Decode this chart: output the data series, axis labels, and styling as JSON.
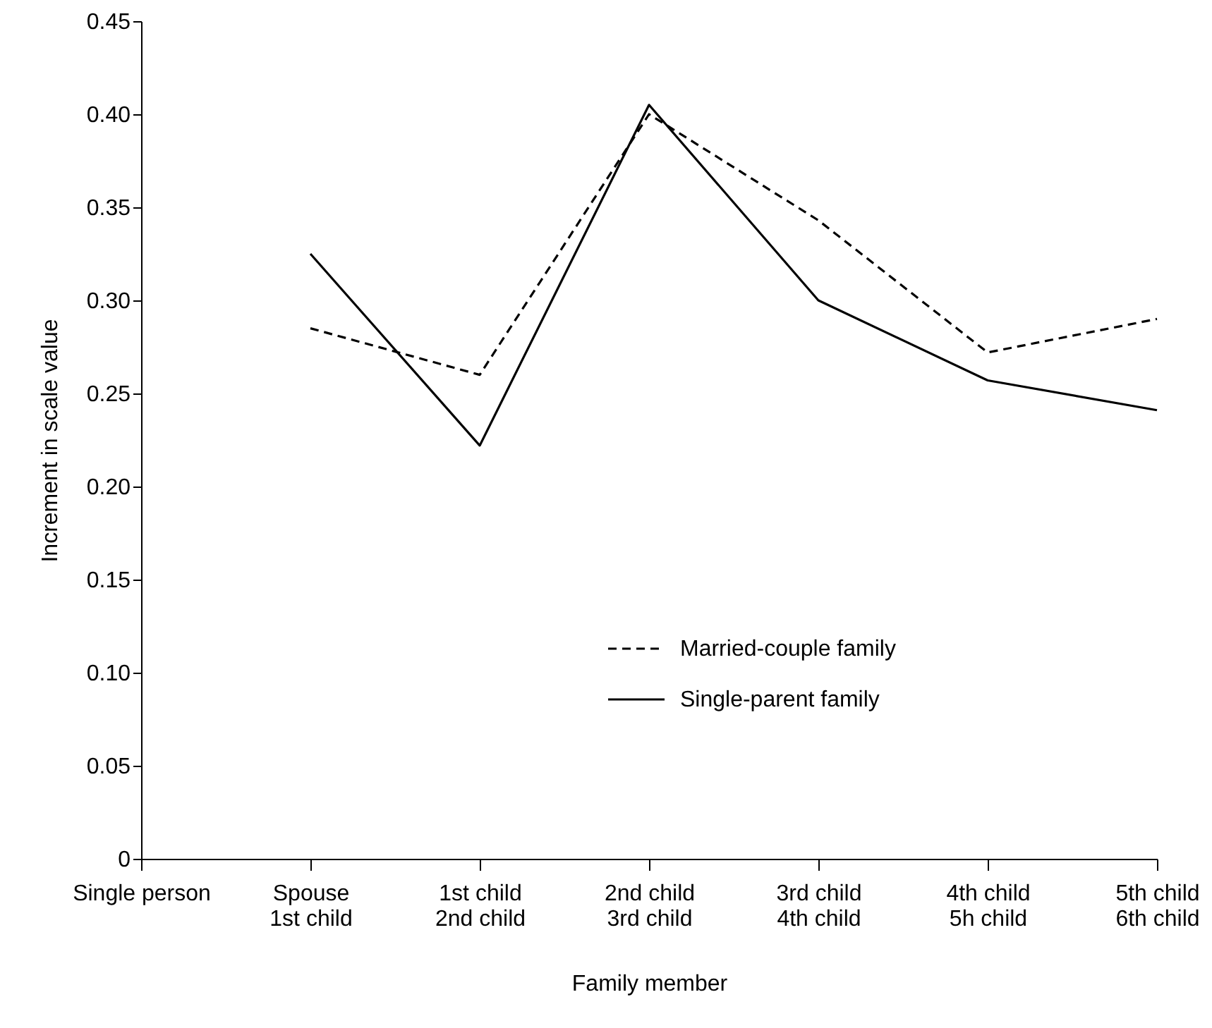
{
  "chart_data": {
    "type": "line",
    "xlabel": "Family member",
    "ylabel": "Increment in scale value",
    "categories": [
      "Single person",
      "Spouse\n1st child",
      "1st child\n2nd child",
      "2nd child\n3rd child",
      "3rd child\n4th child",
      "4th child\n5h child",
      "5th child\n6th child"
    ],
    "series": [
      {
        "name": "Married-couple family",
        "color": "#000000",
        "line_style": "dashed",
        "values": [
          null,
          0.285,
          0.26,
          0.4,
          0.343,
          0.272,
          0.29
        ]
      },
      {
        "name": "Single-parent family",
        "color": "#000000",
        "line_style": "solid",
        "values": [
          null,
          0.325,
          0.222,
          0.405,
          0.3,
          0.257,
          0.241
        ]
      }
    ],
    "ylim": [
      0,
      0.45
    ],
    "yticks": [
      {
        "value": 0,
        "label": "0"
      },
      {
        "value": 0.05,
        "label": "0.05"
      },
      {
        "value": 0.1,
        "label": "0.10"
      },
      {
        "value": 0.15,
        "label": "0.15"
      },
      {
        "value": 0.2,
        "label": "0.20"
      },
      {
        "value": 0.25,
        "label": "0.25"
      },
      {
        "value": 0.3,
        "label": "0.30"
      },
      {
        "value": 0.35,
        "label": "0.35"
      },
      {
        "value": 0.4,
        "label": "0.40"
      },
      {
        "value": 0.45,
        "label": "0.45"
      }
    ],
    "grid": false,
    "legend": "bottom",
    "marker": "none"
  }
}
